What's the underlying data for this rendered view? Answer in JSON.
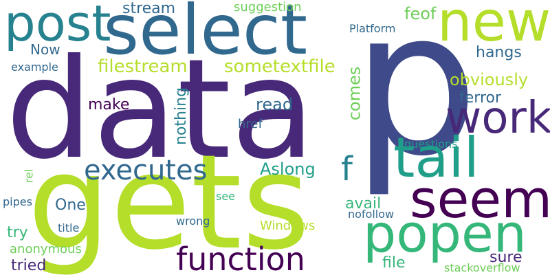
{
  "colors": {
    "background": "#ffffff",
    "indigo": "#482878",
    "darkblue": "#3e4a89",
    "slate": "#31688e",
    "teal": "#26828e",
    "aqua": "#1f9e89",
    "green": "#35b779",
    "lime": "#6ece58",
    "yellowgreen": "#b5de2b",
    "purple": "#440154"
  },
  "words": {
    "p": "p",
    "data": "data",
    "gets": "gets",
    "select": "select",
    "new": "new",
    "tail": "tail",
    "popen": "popen",
    "seem": "seem",
    "work": "work",
    "function": "function",
    "executes": "executes",
    "post": "post",
    "f": "f",
    "filestream": "filestream",
    "sometextfile": "sometextfile",
    "obviously": "obviously",
    "ferror": "ferror",
    "comes": "comes",
    "nothing": "nothing",
    "read": "read",
    "href": "href",
    "make": "make",
    "Aslong": "Aslong",
    "stream": "stream",
    "suggestion": "suggestion",
    "Platform": "Platform",
    "feof": "feof",
    "hangs": "hangs",
    "Now": "Now",
    "example": "example",
    "questions": "questions",
    "rel": "rel",
    "pipes": "pipes",
    "One": "One",
    "see": "see",
    "avail": "avail",
    "nofollow": "nofollow",
    "title": "title",
    "wrong": "wrong",
    "try": "try",
    "Windows": "Windows",
    "anonymous": "anonymous",
    "sure": "sure",
    "tried": "tried",
    "file": "file",
    "stackoverflow": "stackoverflow"
  }
}
